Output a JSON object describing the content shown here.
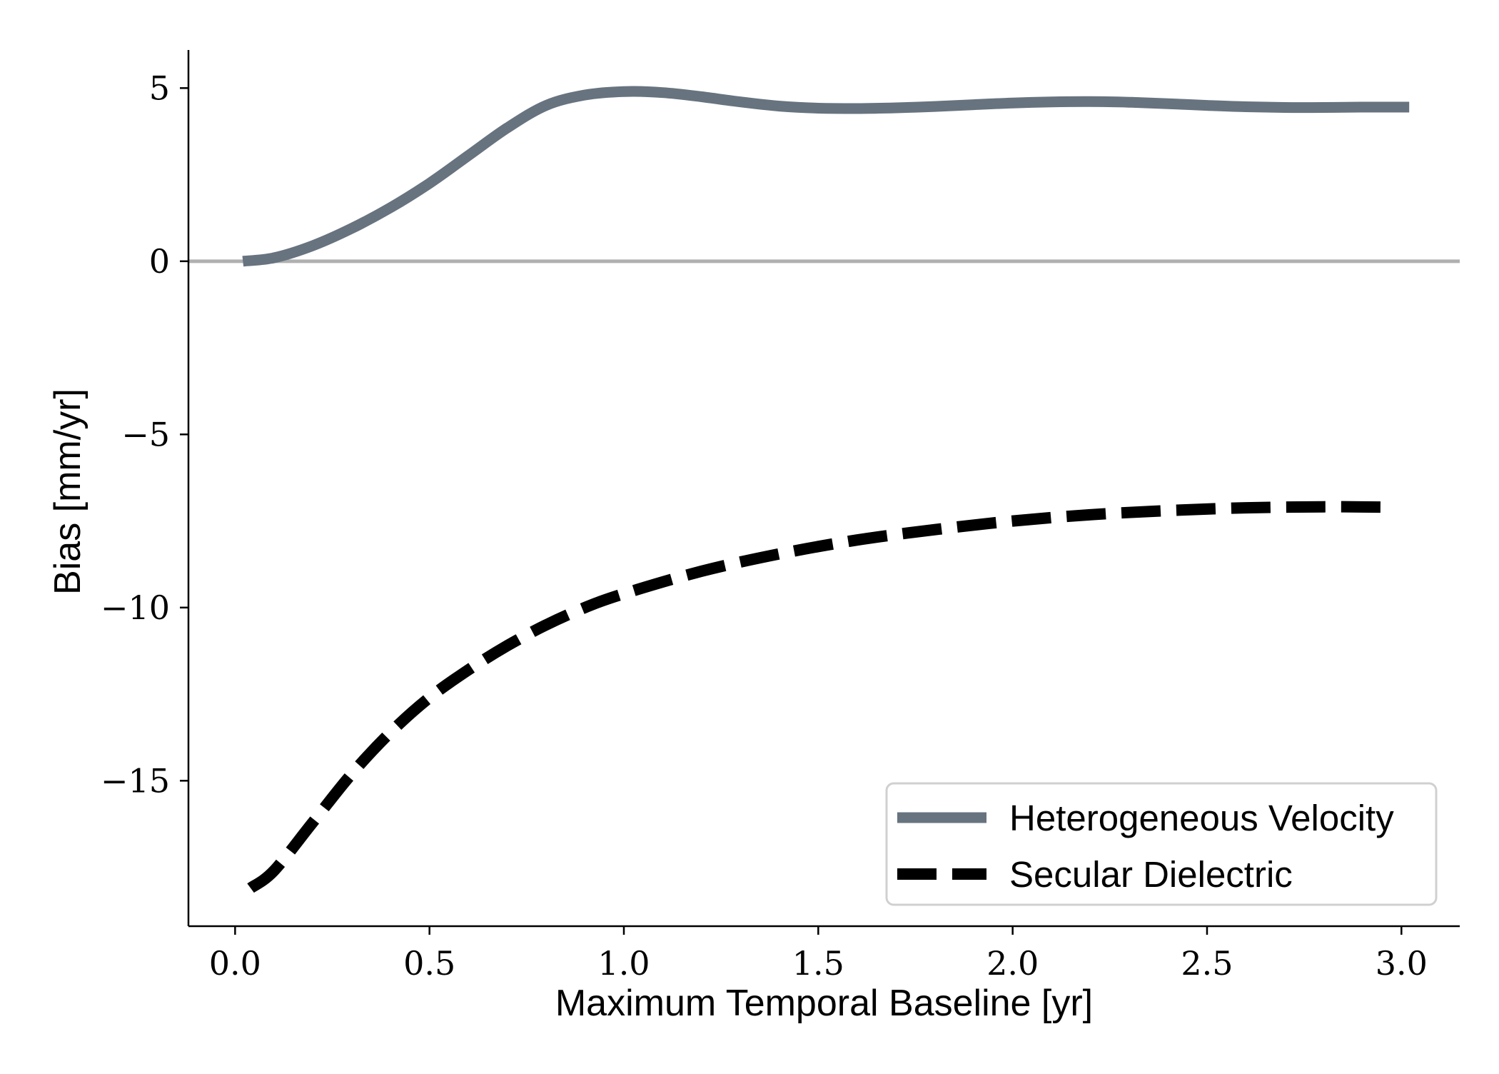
{
  "chart_data": {
    "type": "line",
    "xlabel": "Maximum Temporal Baseline [yr]",
    "ylabel": "Bias [mm/yr]",
    "xlim": [
      -0.12,
      3.15
    ],
    "ylim": [
      -19.2,
      6.1
    ],
    "xticks": [
      0.0,
      0.5,
      1.0,
      1.5,
      2.0,
      2.5,
      3.0
    ],
    "xtick_labels": [
      "0.0",
      "0.5",
      "1.0",
      "1.5",
      "2.0",
      "2.5",
      "3.0"
    ],
    "yticks": [
      5,
      0,
      -5,
      -10,
      -15
    ],
    "ytick_labels": [
      "5",
      "0",
      "−5",
      "−10",
      "−15"
    ],
    "reference_line": {
      "y": 0,
      "color": "#b0b0b0"
    },
    "grid": false,
    "legend_position": "lower-right",
    "series": [
      {
        "name": "Heterogeneous Velocity",
        "style": "solid",
        "color": "#67737f",
        "x": [
          0.02,
          0.1,
          0.2,
          0.3,
          0.4,
          0.5,
          0.6,
          0.7,
          0.8,
          0.9,
          1.0,
          1.1,
          1.2,
          1.3,
          1.4,
          1.5,
          1.6,
          1.7,
          1.8,
          1.9,
          2.0,
          2.1,
          2.2,
          2.3,
          2.4,
          2.5,
          2.6,
          2.7,
          2.8,
          2.9,
          3.02
        ],
        "values": [
          0.0,
          0.1,
          0.45,
          0.95,
          1.55,
          2.25,
          3.05,
          3.85,
          4.5,
          4.8,
          4.9,
          4.87,
          4.75,
          4.6,
          4.48,
          4.42,
          4.41,
          4.43,
          4.47,
          4.52,
          4.57,
          4.6,
          4.61,
          4.59,
          4.55,
          4.5,
          4.46,
          4.44,
          4.44,
          4.45,
          4.45
        ]
      },
      {
        "name": "Secular Dielectric",
        "style": "dashed",
        "color": "#000000",
        "x": [
          0.04,
          0.1,
          0.2,
          0.3,
          0.4,
          0.5,
          0.6,
          0.7,
          0.8,
          0.9,
          1.0,
          1.2,
          1.4,
          1.6,
          1.8,
          2.0,
          2.2,
          2.4,
          2.6,
          2.8,
          2.97
        ],
        "values": [
          -18.1,
          -17.6,
          -16.2,
          -14.8,
          -13.6,
          -12.6,
          -11.8,
          -11.1,
          -10.5,
          -10.0,
          -9.6,
          -8.95,
          -8.45,
          -8.05,
          -7.75,
          -7.5,
          -7.32,
          -7.2,
          -7.12,
          -7.09,
          -7.1
        ]
      }
    ]
  }
}
